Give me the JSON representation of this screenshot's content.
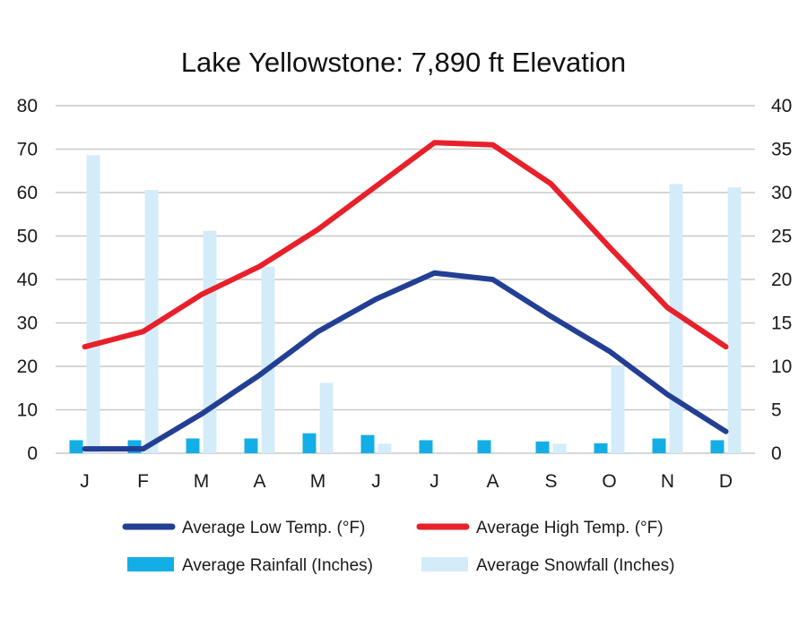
{
  "chart_data": {
    "type": "bar",
    "title": "Lake Yellowstone: 7,890 ft Elevation",
    "categories": [
      "J",
      "F",
      "M",
      "A",
      "M",
      "J",
      "J",
      "A",
      "S",
      "O",
      "N",
      "D"
    ],
    "left_axis": {
      "ylim": [
        0,
        80
      ],
      "ticks": [
        "0",
        "10",
        "20",
        "30",
        "40",
        "50",
        "60",
        "70",
        "80"
      ]
    },
    "right_axis": {
      "ylim": [
        0,
        40
      ],
      "ticks": [
        "0",
        "5",
        "10",
        "15",
        "20",
        "25",
        "30",
        "35",
        "40"
      ]
    },
    "grid": true,
    "legend_position": "bottom",
    "series": [
      {
        "name": "Average Low Temp. (°F)",
        "kind": "line",
        "axis": "left",
        "color": "#233f94",
        "values": [
          1,
          1,
          9,
          18,
          28,
          35.5,
          41.5,
          40,
          31.5,
          23.5,
          13.5,
          5
        ]
      },
      {
        "name": "Average High Temp. (°F)",
        "kind": "line",
        "axis": "left",
        "color": "#e8202a",
        "values": [
          24.5,
          28,
          36.5,
          43,
          51.5,
          61.5,
          71.5,
          71,
          62,
          47.5,
          33.5,
          24.5
        ]
      },
      {
        "name": "Average Rainfall (Inches)",
        "kind": "bar",
        "axis": "right",
        "color": "#13aee6",
        "values": [
          1.5,
          1.5,
          1.7,
          1.7,
          2.3,
          2.1,
          1.5,
          1.5,
          1.35,
          1.15,
          1.7,
          1.5
        ]
      },
      {
        "name": "Average Snowfall (Inches)",
        "kind": "bar",
        "axis": "right",
        "color": "#d4ecf9",
        "values": [
          34.3,
          30.3,
          25.6,
          21.5,
          8.1,
          1.1,
          0,
          0,
          1.1,
          10,
          31,
          30.6
        ]
      }
    ]
  }
}
